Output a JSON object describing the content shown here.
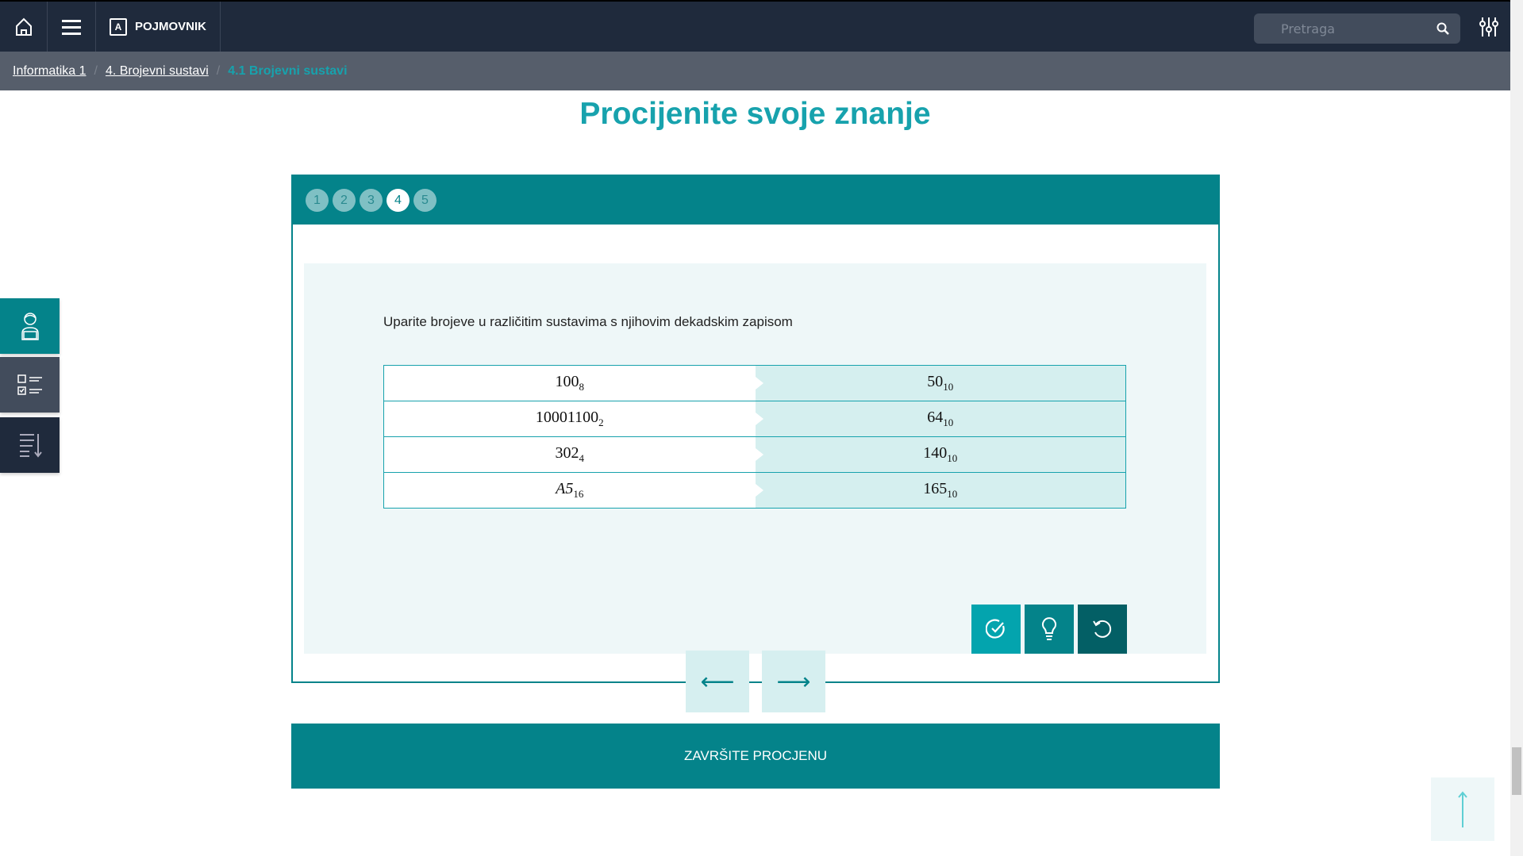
{
  "header": {
    "pojmovnik_letter": "A",
    "pojmovnik_label": "POJMOVNIK",
    "search_placeholder": "Pretraga"
  },
  "breadcrumb": [
    {
      "label": "Informatika 1"
    },
    {
      "label": "4. Brojevni sustavi"
    },
    {
      "label": "4.1 Brojevni sustavi"
    }
  ],
  "page_title": "Procijenite svoje znanje",
  "quiz": {
    "steps": [
      "1",
      "2",
      "3",
      "4",
      "5"
    ],
    "active_step": "4",
    "prompt": "Uparite brojeve u različitim sustavima s njihovim dekadskim zapisom",
    "pairs": [
      {
        "left": "100",
        "left_base": "8",
        "right": "50",
        "right_base": "10"
      },
      {
        "left": "10001100",
        "left_base": "2",
        "right": "64",
        "right_base": "10"
      },
      {
        "left": "302",
        "left_base": "4",
        "right": "140",
        "right_base": "10"
      },
      {
        "left": "A5",
        "left_base": "16",
        "right": "165",
        "right_base": "10"
      }
    ],
    "actions": [
      "check-icon",
      "hint-icon",
      "reset-icon"
    ],
    "prev_arrow": "⟵",
    "next_arrow": "⟶"
  },
  "finish_label": "ZAVRŠITE PROCJENU",
  "colors": {
    "teal": "#04838a",
    "accent": "#17a2ad",
    "header": "#1f2a3c"
  }
}
